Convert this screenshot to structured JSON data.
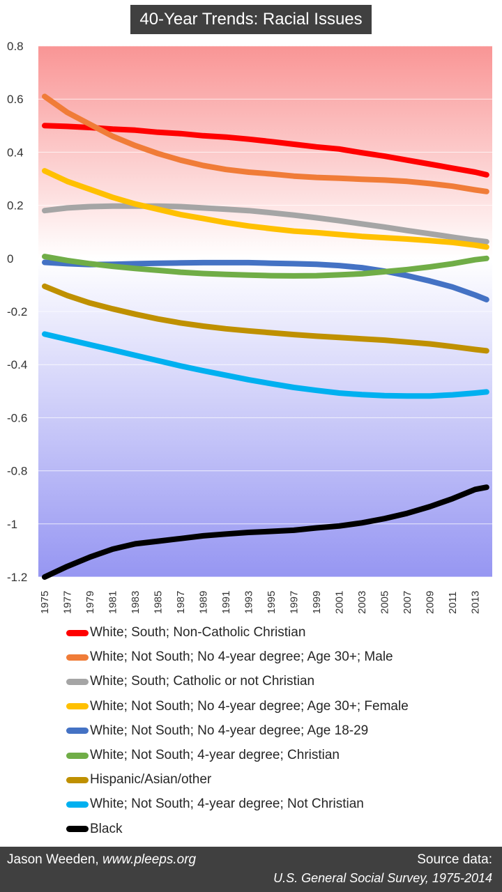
{
  "title": "40-Year Trends: Racial Issues",
  "footer": {
    "author_name": "Jason Weeden, ",
    "author_site": "www.pleeps.org",
    "source_label": "Source data:",
    "source": "U.S. General Social Survey, 1975-2014"
  },
  "chart_data": {
    "type": "line",
    "title": "40-Year Trends: Racial Issues",
    "xlabel": "",
    "ylabel": "",
    "ylim": [
      -1.2,
      0.8
    ],
    "y_ticks": [
      "0.8",
      "0.6",
      "0.4",
      "0.2",
      "0",
      "-0.2",
      "-0.4",
      "-0.6",
      "-0.8",
      "-1",
      "-1.2"
    ],
    "x_tick_labels": [
      "1975",
      "1977",
      "1979",
      "1981",
      "1983",
      "1985",
      "1987",
      "1989",
      "1991",
      "1993",
      "1995",
      "1997",
      "1999",
      "2001",
      "2003",
      "2005",
      "2007",
      "2009",
      "2011",
      "2013"
    ],
    "x": [
      1975,
      1977,
      1979,
      1981,
      1983,
      1985,
      1987,
      1989,
      1991,
      1993,
      1995,
      1997,
      1999,
      2001,
      2003,
      2005,
      2007,
      2009,
      2011,
      2013,
      2014
    ],
    "background": {
      "top_color": "#f99595",
      "middle_color": "#ffffff",
      "bottom_color": "#9696f2"
    },
    "grid": true,
    "legend_position": "bottom",
    "series": [
      {
        "name": "White; South; Non-Catholic Christian",
        "color": "#ff0000",
        "values": [
          0.5,
          0.497,
          0.493,
          0.487,
          0.483,
          0.475,
          0.47,
          0.462,
          0.457,
          0.449,
          0.44,
          0.43,
          0.42,
          0.412,
          0.398,
          0.385,
          0.37,
          0.355,
          0.34,
          0.325,
          0.315
        ]
      },
      {
        "name": "White; Not South; No 4-year degree; Age 30+; Male",
        "color": "#f07c38",
        "values": [
          0.61,
          0.55,
          0.505,
          0.46,
          0.425,
          0.395,
          0.37,
          0.35,
          0.335,
          0.325,
          0.318,
          0.31,
          0.305,
          0.302,
          0.298,
          0.295,
          0.29,
          0.282,
          0.272,
          0.258,
          0.252
        ]
      },
      {
        "name": "White; South; Catholic or not Christian",
        "color": "#a5a5a5",
        "values": [
          0.18,
          0.19,
          0.195,
          0.197,
          0.197,
          0.197,
          0.195,
          0.19,
          0.185,
          0.18,
          0.172,
          0.163,
          0.153,
          0.142,
          0.13,
          0.118,
          0.105,
          0.093,
          0.08,
          0.068,
          0.063
        ]
      },
      {
        "name": "White; Not South; No 4-year degree; Age 30+; Female",
        "color": "#ffc000",
        "values": [
          0.33,
          0.29,
          0.26,
          0.23,
          0.205,
          0.185,
          0.165,
          0.15,
          0.135,
          0.122,
          0.112,
          0.103,
          0.097,
          0.09,
          0.083,
          0.078,
          0.073,
          0.067,
          0.06,
          0.05,
          0.043
        ]
      },
      {
        "name": "White; Not South; No 4-year degree; Age 18-29",
        "color": "#4472c4",
        "values": [
          -0.015,
          -0.02,
          -0.023,
          -0.022,
          -0.02,
          -0.018,
          -0.017,
          -0.016,
          -0.016,
          -0.016,
          -0.018,
          -0.02,
          -0.022,
          -0.027,
          -0.035,
          -0.048,
          -0.065,
          -0.085,
          -0.108,
          -0.138,
          -0.155
        ]
      },
      {
        "name": "White; Not South; 4-year degree; Christian",
        "color": "#70ad47",
        "values": [
          0.007,
          -0.008,
          -0.02,
          -0.03,
          -0.038,
          -0.045,
          -0.052,
          -0.057,
          -0.06,
          -0.063,
          -0.065,
          -0.066,
          -0.065,
          -0.062,
          -0.058,
          -0.05,
          -0.042,
          -0.032,
          -0.02,
          -0.005,
          0.0
        ]
      },
      {
        "name": "Hispanic/Asian/other",
        "color": "#bf9000",
        "values": [
          -0.105,
          -0.14,
          -0.168,
          -0.19,
          -0.21,
          -0.228,
          -0.243,
          -0.255,
          -0.265,
          -0.273,
          -0.28,
          -0.287,
          -0.293,
          -0.298,
          -0.303,
          -0.308,
          -0.315,
          -0.322,
          -0.332,
          -0.343,
          -0.348
        ]
      },
      {
        "name": "White; Not South; 4-year degree; Not Christian",
        "color": "#00b0f0",
        "values": [
          -0.285,
          -0.305,
          -0.325,
          -0.345,
          -0.365,
          -0.385,
          -0.405,
          -0.423,
          -0.44,
          -0.457,
          -0.472,
          -0.486,
          -0.497,
          -0.507,
          -0.513,
          -0.517,
          -0.518,
          -0.518,
          -0.514,
          -0.507,
          -0.503
        ]
      },
      {
        "name": "Black",
        "color": "#000000",
        "values": [
          -1.2,
          -1.16,
          -1.125,
          -1.095,
          -1.075,
          -1.065,
          -1.055,
          -1.045,
          -1.038,
          -1.032,
          -1.028,
          -1.024,
          -1.015,
          -1.008,
          -0.996,
          -0.98,
          -0.96,
          -0.935,
          -0.905,
          -0.87,
          -0.862
        ]
      }
    ]
  }
}
